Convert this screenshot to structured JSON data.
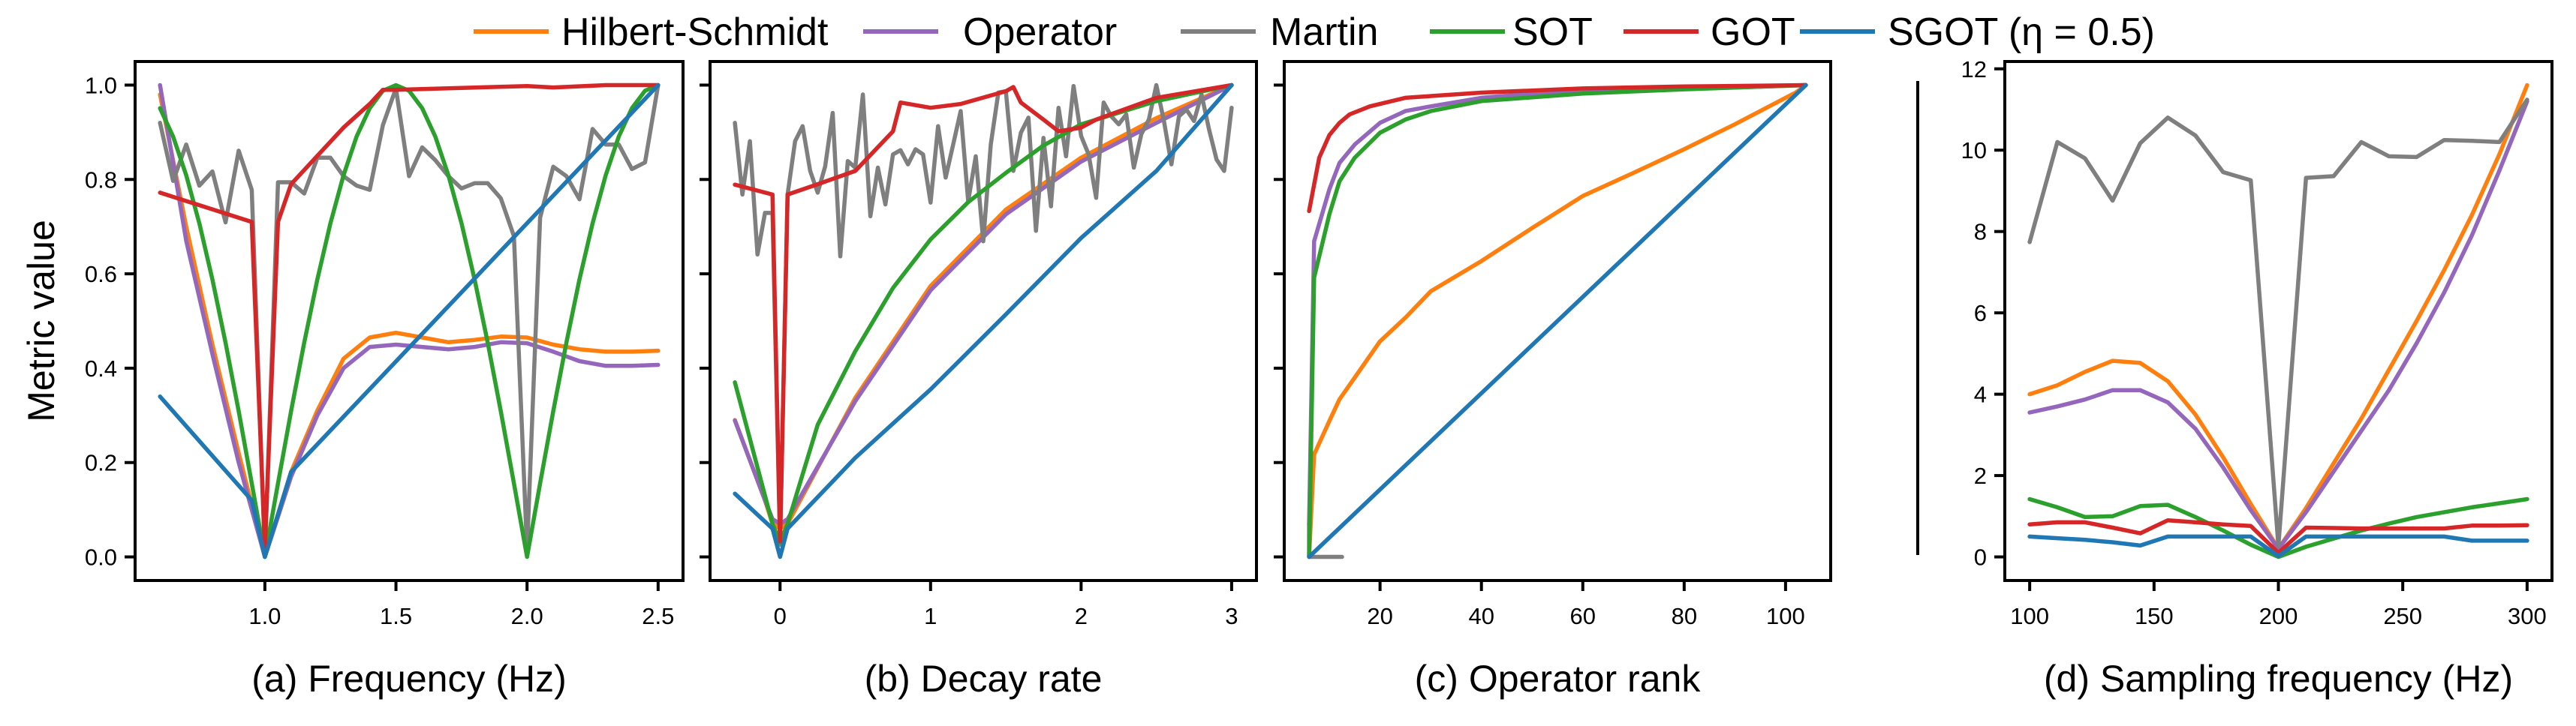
{
  "legend": {
    "entries": [
      {
        "label": "Hilbert-Schmidt",
        "color": "#ff7f0e"
      },
      {
        "label": "Operator",
        "color": "#9467bd"
      },
      {
        "label": "Martin",
        "color": "#7f7f7f"
      },
      {
        "label": "SOT",
        "color": "#2ca02c"
      },
      {
        "label": "GOT",
        "color": "#d62728"
      },
      {
        "label": "SGOT (η = 0.5)",
        "color": "#1f77b4"
      }
    ],
    "placement": "top-center"
  },
  "chart_data": [
    {
      "type": "line",
      "title": "",
      "xlabel": "(a) Frequency (Hz)",
      "ylabel": "Metric value",
      "xlim": [
        0.505,
        2.595
      ],
      "ylim": [
        -0.05,
        1.05
      ],
      "xticks": [
        1.0,
        1.5,
        2.0,
        2.5
      ],
      "xtick_labels": [
        "1.0",
        "1.5",
        "2.0",
        "2.5"
      ],
      "yticks": [
        0,
        0.2,
        0.4,
        0.6,
        0.8,
        1.0
      ],
      "ytick_labels": [
        "0.0",
        "0.2",
        "0.4",
        "0.6",
        "0.8",
        "1.0"
      ],
      "grid": false,
      "series": [
        {
          "x": [
            0.6,
            0.7,
            0.8,
            0.9,
            1.0,
            1.1,
            1.2,
            1.3,
            1.4,
            1.5,
            1.6,
            1.7,
            1.8,
            1.9,
            2.0,
            2.1,
            2.2,
            2.3,
            2.4,
            2.5
          ],
          "y": [
            0.98,
            0.7,
            0.45,
            0.22,
            0.0,
            0.18,
            0.31,
            0.42,
            0.465,
            0.475,
            0.465,
            0.455,
            0.46,
            0.467,
            0.465,
            0.45,
            0.44,
            0.435,
            0.435,
            0.437
          ]
        },
        {
          "x": [
            0.6,
            0.7,
            0.8,
            0.9,
            1.0,
            1.1,
            1.2,
            1.3,
            1.4,
            1.5,
            1.6,
            1.7,
            1.8,
            1.9,
            2.0,
            2.1,
            2.2,
            2.3,
            2.4,
            2.5
          ],
          "y": [
            1.0,
            0.67,
            0.43,
            0.2,
            0.0,
            0.17,
            0.3,
            0.4,
            0.445,
            0.45,
            0.445,
            0.44,
            0.445,
            0.455,
            0.453,
            0.435,
            0.415,
            0.405,
            0.405,
            0.407
          ]
        },
        {
          "x0": 0.6,
          "dx": 0.05,
          "y": [
            0.92,
            0.797,
            0.874,
            0.787,
            0.817,
            0.709,
            0.861,
            0.778,
            0.004,
            0.794,
            0.794,
            0.77,
            0.846,
            0.846,
            0.807,
            0.787,
            0.778,
            0.915,
            0.993,
            0.807,
            0.868,
            0.841,
            0.807,
            0.781,
            0.792,
            0.792,
            0.76,
            0.68,
            0.014,
            0.719,
            0.827,
            0.807,
            0.758,
            0.907,
            0.874,
            0.874,
            0.822,
            0.836,
            1.0
          ]
        },
        {
          "x0": 0.6,
          "dx": 0.05,
          "y": [
            0.951,
            0.891,
            0.809,
            0.707,
            0.588,
            0.454,
            0.309,
            0.156,
            0.0,
            0.156,
            0.309,
            0.454,
            0.588,
            0.707,
            0.809,
            0.891,
            0.951,
            0.988,
            1.0,
            0.988,
            0.951,
            0.891,
            0.809,
            0.707,
            0.588,
            0.454,
            0.309,
            0.156,
            0.0,
            0.156,
            0.309,
            0.454,
            0.588,
            0.707,
            0.809,
            0.891,
            0.951,
            0.988,
            1.0
          ]
        },
        {
          "x": [
            0.6,
            0.95,
            1.0,
            1.05,
            1.1,
            1.2,
            1.3,
            1.4,
            1.45,
            1.5,
            2.0,
            2.1,
            2.3,
            2.5
          ],
          "y": [
            0.772,
            0.71,
            0.02,
            0.71,
            0.79,
            0.85,
            0.91,
            0.96,
            0.99,
            0.99,
            0.998,
            0.995,
            1.0,
            1.0
          ]
        },
        {
          "x": [
            0.6,
            0.95,
            1.0,
            1.1,
            2.5
          ],
          "y": [
            0.34,
            0.12,
            0.0,
            0.18,
            1.0
          ]
        }
      ]
    },
    {
      "type": "line",
      "title": "",
      "xlabel": "(b) Decay rate",
      "xlim": [
        -0.465,
        3.165
      ],
      "ylim": [
        -0.05,
        1.05
      ],
      "xticks": [
        0,
        1,
        2,
        3
      ],
      "xtick_labels": [
        "0",
        "1",
        "2",
        "3"
      ],
      "yticks": [
        0,
        0.2,
        0.4,
        0.6,
        0.8,
        1.0
      ],
      "grid": false,
      "series": [
        {
          "x": [
            -0.3,
            -0.1,
            -0.05,
            0,
            0.05,
            0.5,
            1,
            1.5,
            2,
            2.5,
            3
          ],
          "y": [
            0.29,
            0.12,
            0.07,
            0.06,
            0.07,
            0.337,
            0.574,
            0.736,
            0.846,
            0.93,
            1.0
          ]
        },
        {
          "x": [
            -0.3,
            -0.1,
            -0.05,
            0,
            0.05,
            0.5,
            1,
            1.5,
            2,
            2.5,
            3
          ],
          "y": [
            0.289,
            0.12,
            0.08,
            0.07,
            0.08,
            0.33,
            0.565,
            0.726,
            0.838,
            0.92,
            1.0
          ]
        },
        {
          "x0": -0.3,
          "dx": 0.05,
          "y": [
            0.92,
            0.768,
            0.881,
            0.641,
            0.729,
            0.729,
            0.026,
            0.768,
            0.881,
            0.913,
            0.818,
            0.772,
            0.828,
            0.941,
            0.637,
            0.839,
            0.825,
            0.98,
            0.722,
            0.825,
            0.747,
            0.853,
            0.862,
            0.832,
            0.864,
            0.853,
            0.751,
            0.913,
            0.804,
            0.874,
            0.945,
            0.754,
            0.849,
            0.669,
            0.874,
            0.984,
            0.987,
            0.818,
            0.899,
            0.931,
            0.691,
            0.888,
            0.743,
            0.952,
            0.849,
            0.998,
            0.892,
            0.853,
            0.761,
            0.963,
            0.934,
            0.917,
            0.938,
            0.825,
            0.896,
            0.927,
            1.0,
            0.924,
            0.832,
            0.934,
            0.948,
            0.924,
            0.98,
            0.906,
            0.842,
            0.818,
            0.952
          ]
        },
        {
          "x": [
            -0.3,
            -0.05,
            0,
            0.05,
            0.25,
            0.5,
            0.75,
            1,
            1.25,
            1.5,
            1.75,
            2,
            2.5,
            3
          ],
          "y": [
            0.37,
            0.07,
            0.03,
            0.07,
            0.28,
            0.436,
            0.57,
            0.673,
            0.752,
            0.814,
            0.872,
            0.917,
            0.966,
            1.0
          ]
        },
        {
          "x": [
            -0.3,
            -0.05,
            0,
            0.05,
            0.25,
            0.5,
            0.75,
            0.8,
            1,
            1.2,
            1.5,
            1.55,
            1.6,
            1.75,
            1.85,
            2.0,
            2.1,
            2.5,
            3
          ],
          "y": [
            0.789,
            0.768,
            0.033,
            0.768,
            0.79,
            0.818,
            0.902,
            0.963,
            0.952,
            0.96,
            0.987,
            0.996,
            0.963,
            0.927,
            0.902,
            0.91,
            0.927,
            0.973,
            1.0
          ]
        },
        {
          "x": [
            -0.3,
            -0.05,
            0,
            0.05,
            0.5,
            1,
            1.5,
            2,
            2.5,
            3
          ],
          "y": [
            0.134,
            0.06,
            0.0,
            0.06,
            0.21,
            0.355,
            0.514,
            0.676,
            0.818,
            1.0
          ]
        }
      ]
    },
    {
      "type": "line",
      "title": "",
      "xlabel": "(c) Operator rank",
      "xlim": [
        1.1,
        108.9
      ],
      "ylim": [
        -0.05,
        1.05
      ],
      "xticks": [
        20,
        40,
        60,
        80,
        100
      ],
      "xtick_labels": [
        "20",
        "40",
        "60",
        "80",
        "100"
      ],
      "yticks": [
        0,
        0.2,
        0.4,
        0.6,
        0.8,
        1.0
      ],
      "grid": false,
      "series": [
        {
          "x": [
            6,
            7,
            10,
            12,
            15,
            20,
            25,
            30,
            40,
            50,
            60,
            70,
            80,
            90,
            100,
            102,
            104
          ],
          "y": [
            0.0,
            0.217,
            0.288,
            0.334,
            0.38,
            0.457,
            0.507,
            0.563,
            0.627,
            0.697,
            0.765,
            0.814,
            0.864,
            0.917,
            0.973,
            0.984,
            1.0
          ]
        },
        {
          "x": [
            6,
            7,
            10,
            12,
            15,
            20,
            25,
            30,
            40,
            50,
            60,
            70,
            80,
            90,
            104
          ],
          "y": [
            0.069,
            0.669,
            0.779,
            0.835,
            0.874,
            0.92,
            0.945,
            0.955,
            0.973,
            0.982,
            0.986,
            0.99,
            0.993,
            0.995,
            1.0
          ]
        },
        {
          "x": [
            6,
            6,
            12.5
          ],
          "y": [
            0.07,
            0.0,
            0.0
          ]
        },
        {
          "x": [
            6,
            7,
            10,
            12,
            15,
            20,
            25,
            30,
            40,
            60,
            80,
            104
          ],
          "y": [
            0.0,
            0.592,
            0.726,
            0.796,
            0.846,
            0.899,
            0.927,
            0.945,
            0.966,
            0.982,
            0.991,
            1.0
          ]
        },
        {
          "x": [
            6,
            8,
            10,
            12,
            14,
            18,
            25,
            40,
            60,
            80,
            104
          ],
          "y": [
            0.733,
            0.846,
            0.894,
            0.92,
            0.938,
            0.955,
            0.973,
            0.984,
            0.993,
            0.997,
            1.0
          ]
        },
        {
          "x": [
            6,
            104
          ],
          "y": [
            0.0,
            1.0
          ]
        }
      ]
    },
    {
      "type": "line",
      "title": "",
      "xlabel": "(d) Sampling frequency (Hz)",
      "xlim": [
        90,
        310
      ],
      "ylim": [
        -0.58,
        12.18
      ],
      "xticks": [
        100,
        150,
        200,
        250,
        300
      ],
      "xtick_labels": [
        "100",
        "150",
        "200",
        "250",
        "300"
      ],
      "yticks": [
        0,
        2,
        4,
        6,
        8,
        10,
        12
      ],
      "ytick_labels": [
        "0",
        "2",
        "4",
        "6",
        "8",
        "10",
        "12"
      ],
      "grid": false,
      "series": [
        {
          "x0": 100,
          "dx": 11.111,
          "y": [
            4.0,
            4.22,
            4.55,
            4.82,
            4.77,
            4.32,
            3.5,
            2.45,
            1.3,
            0.2,
            1.2,
            2.3,
            3.4,
            4.6,
            5.8,
            7.05,
            8.4,
            9.9,
            11.6
          ]
        },
        {
          "x0": 100,
          "dx": 11.111,
          "y": [
            3.55,
            3.7,
            3.87,
            4.1,
            4.1,
            3.8,
            3.15,
            2.2,
            1.15,
            0.2,
            1.1,
            2.1,
            3.1,
            4.1,
            5.25,
            6.5,
            7.9,
            9.5,
            11.2
          ]
        },
        {
          "x0": 100,
          "dx": 11.111,
          "y": [
            7.74,
            10.2,
            9.8,
            8.76,
            10.17,
            10.8,
            10.36,
            9.46,
            9.26,
            0.27,
            9.32,
            9.36,
            10.2,
            9.85,
            9.83,
            10.25,
            10.23,
            10.2,
            11.24
          ]
        },
        {
          "x0": 100,
          "dx": 11.111,
          "y": [
            1.42,
            1.22,
            0.98,
            1.0,
            1.25,
            1.28,
            0.98,
            0.65,
            0.3,
            0.0,
            0.25,
            0.45,
            0.65,
            0.82,
            0.98,
            1.1,
            1.22,
            1.32,
            1.42
          ]
        },
        {
          "x0": 100,
          "dx": 11.111,
          "y": [
            0.8,
            0.85,
            0.85,
            0.72,
            0.58,
            0.9,
            0.85,
            0.8,
            0.76,
            0.1,
            0.72,
            0.71,
            0.7,
            0.7,
            0.7,
            0.7,
            0.77,
            0.77,
            0.78
          ]
        },
        {
          "x0": 100,
          "dx": 11.111,
          "y": [
            0.5,
            0.46,
            0.42,
            0.36,
            0.28,
            0.5,
            0.5,
            0.5,
            0.5,
            0.02,
            0.5,
            0.5,
            0.5,
            0.5,
            0.5,
            0.5,
            0.4,
            0.4,
            0.4
          ]
        }
      ]
    }
  ]
}
